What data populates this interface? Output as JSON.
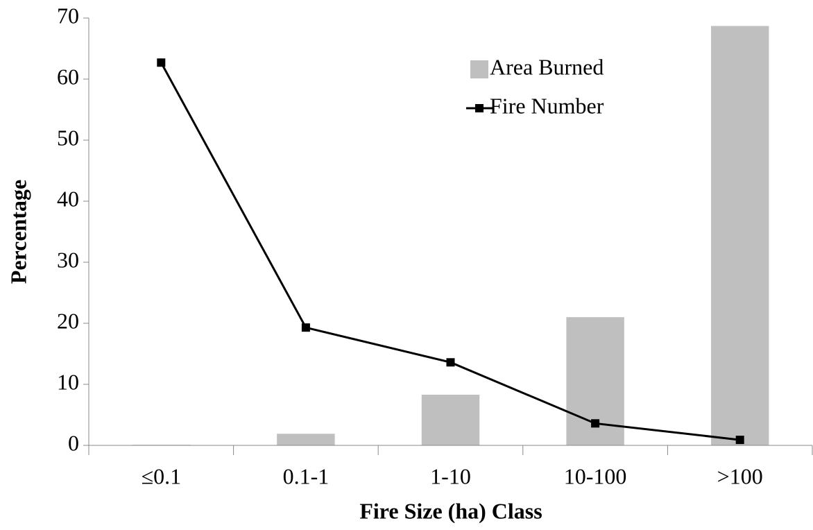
{
  "chart_data": {
    "type": "combo",
    "x_label": "Fire Size (ha) Class",
    "y_label": "Percentage",
    "categories": [
      "≤0.1",
      "0.1-1",
      "1-10",
      "10-100",
      ">100"
    ],
    "series": [
      {
        "name": "Area Burned",
        "type": "bar",
        "color": "#bfbfbf",
        "values": [
          0.1,
          1.9,
          8.3,
          21.0,
          68.7
        ]
      },
      {
        "name": "Fire Number",
        "type": "line",
        "color": "#000000",
        "values": [
          62.7,
          19.3,
          13.6,
          3.6,
          0.9
        ]
      }
    ],
    "ylim": [
      0,
      70
    ],
    "yticks": [
      0,
      10,
      20,
      30,
      40,
      50,
      60,
      70
    ],
    "grid": false,
    "legend": "upper-right"
  }
}
